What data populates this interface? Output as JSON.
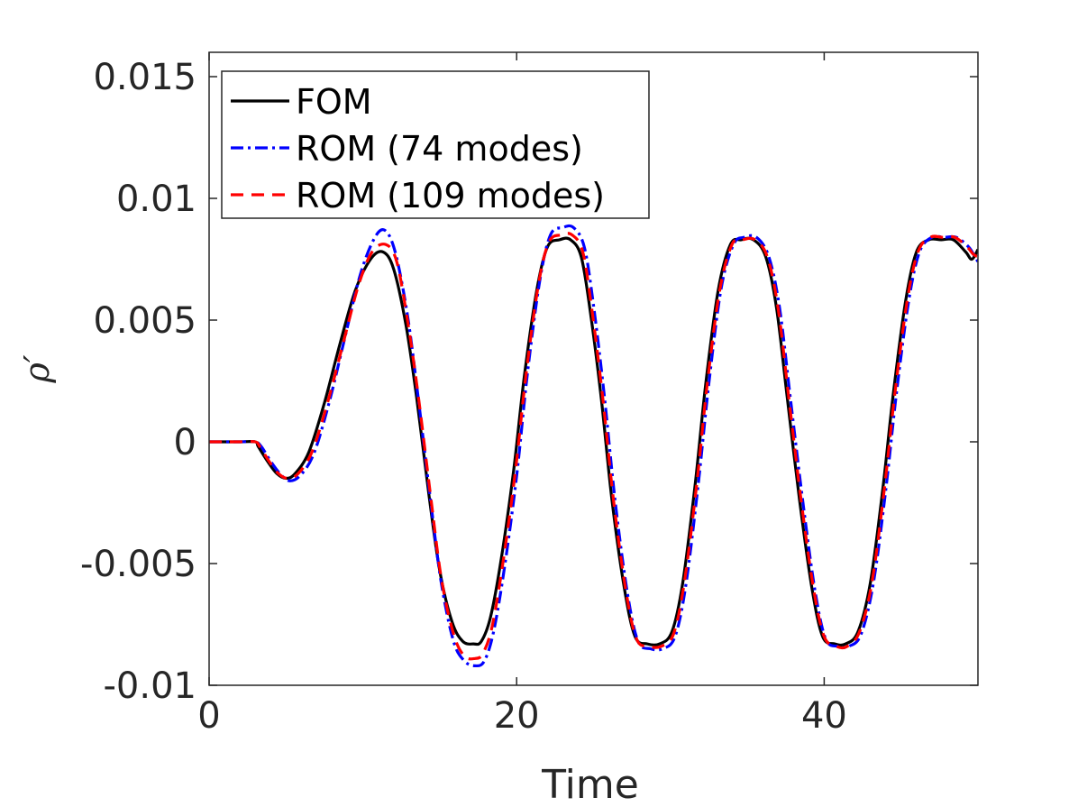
{
  "chart_data": {
    "type": "line",
    "xlabel": "Time",
    "ylabel": "ρ′",
    "xlim": [
      0,
      50
    ],
    "ylim": [
      -0.01,
      0.016
    ],
    "xticks": [
      0,
      20,
      40
    ],
    "xtick_labels": [
      "0",
      "20",
      "40"
    ],
    "yticks": [
      -0.01,
      -0.005,
      0,
      0.005,
      0.01,
      0.015
    ],
    "ytick_labels": [
      "-0.01",
      "-0.005",
      "0",
      "0.005",
      "0.01",
      "0.015"
    ],
    "grid": false,
    "legend_position": "top-left",
    "series": [
      {
        "name": "FOM",
        "color": "#000000",
        "style": "solid",
        "x": [
          0,
          1,
          2,
          3,
          3.2,
          3.8,
          4.4,
          5,
          5.6,
          6.5,
          7.5,
          8.5,
          9.5,
          10.5,
          11.3,
          12,
          12.8,
          13.5,
          14.3,
          15,
          15.8,
          16.5,
          17.2,
          17.7,
          18.3,
          19,
          19.8,
          20.5,
          21.3,
          22,
          22.8,
          23.5,
          24.2,
          24.8,
          25.5,
          26.2,
          27,
          27.7,
          28.5,
          29.3,
          30.1,
          30.8,
          31.6,
          32.3,
          33.1,
          33.9,
          34.6,
          35.4,
          36.2,
          36.9,
          37.6,
          38.4,
          39.2,
          39.9,
          40.7,
          41.4,
          42.2,
          43,
          43.8,
          44.5,
          45.3,
          46,
          46.8,
          47.6,
          48.4,
          49.2,
          49.6,
          50
        ],
        "y": [
          0,
          0,
          0,
          0,
          -0.0002,
          -0.0008,
          -0.0013,
          -0.0015,
          -0.0013,
          -0.0004,
          0.0016,
          0.004,
          0.0062,
          0.0075,
          0.0078,
          0.0071,
          0.0048,
          0.0018,
          -0.0022,
          -0.0053,
          -0.0074,
          -0.0082,
          -0.0083,
          -0.0082,
          -0.0072,
          -0.0048,
          -0.0012,
          0.0027,
          0.0062,
          0.008,
          0.0083,
          0.0083,
          0.0076,
          0.0053,
          0.0018,
          -0.0024,
          -0.006,
          -0.008,
          -0.0083,
          -0.0083,
          -0.0078,
          -0.0058,
          -0.0018,
          0.0024,
          0.0062,
          0.0081,
          0.0083,
          0.0083,
          0.0076,
          0.0055,
          0.0018,
          -0.0024,
          -0.006,
          -0.008,
          -0.0083,
          -0.0083,
          -0.0078,
          -0.0058,
          -0.002,
          0.002,
          0.0058,
          0.0078,
          0.0083,
          0.0083,
          0.0083,
          0.0078,
          0.0075,
          0.0079
        ]
      },
      {
        "name": "ROM (74 modes)",
        "color": "#0000ff",
        "style": "dashdot",
        "x": [
          0,
          1,
          2,
          3,
          3.4,
          4,
          4.6,
          5.2,
          5.9,
          6.8,
          7.8,
          8.8,
          9.8,
          10.7,
          11.4,
          12.1,
          12.9,
          13.6,
          14.4,
          15.1,
          15.9,
          16.6,
          17.3,
          17.9,
          18.5,
          19.2,
          20,
          20.7,
          21.5,
          22.2,
          23,
          23.7,
          24.4,
          25,
          25.7,
          26.4,
          27.2,
          27.9,
          28.7,
          29.5,
          30.3,
          31,
          31.8,
          32.5,
          33.3,
          34.1,
          34.8,
          35.6,
          36.4,
          37.1,
          37.8,
          38.6,
          39.4,
          40.1,
          40.9,
          41.6,
          42.4,
          43.2,
          44,
          44.7,
          45.5,
          46.2,
          47,
          47.8,
          48.6,
          49.4,
          49.8,
          50
        ],
        "y": [
          0,
          0,
          0,
          0,
          -0.0002,
          -0.0008,
          -0.0013,
          -0.0016,
          -0.0014,
          -0.0005,
          0.0016,
          0.0042,
          0.0068,
          0.0083,
          0.0087,
          0.0078,
          0.0052,
          0.0018,
          -0.0024,
          -0.0058,
          -0.0082,
          -0.009,
          -0.0092,
          -0.009,
          -0.0078,
          -0.0052,
          -0.0014,
          0.0028,
          0.0066,
          0.0085,
          0.0088,
          0.0088,
          0.008,
          0.0056,
          0.0019,
          -0.0024,
          -0.0062,
          -0.0082,
          -0.0085,
          -0.0085,
          -0.008,
          -0.0059,
          -0.0018,
          0.0024,
          0.0063,
          0.0081,
          0.0084,
          0.0084,
          0.0076,
          0.0055,
          0.0018,
          -0.0024,
          -0.0061,
          -0.0081,
          -0.0084,
          -0.0084,
          -0.0079,
          -0.0058,
          -0.002,
          0.002,
          0.0058,
          0.0078,
          0.0084,
          0.0084,
          0.0084,
          0.008,
          0.0076,
          0.0074
        ]
      },
      {
        "name": "ROM (109 modes)",
        "color": "#ff0000",
        "style": "dashed",
        "x": [
          0,
          1,
          2,
          3,
          3.3,
          3.9,
          4.5,
          5.1,
          5.8,
          6.7,
          7.7,
          8.7,
          9.7,
          10.6,
          11.5,
          12.2,
          12.9,
          13.6,
          14.4,
          15.1,
          15.9,
          16.6,
          17.3,
          17.8,
          18.4,
          19.1,
          19.9,
          20.6,
          21.4,
          22.1,
          22.9,
          23.6,
          24.3,
          24.9,
          25.6,
          26.3,
          27.1,
          27.8,
          28.6,
          29.4,
          30.2,
          30.9,
          31.7,
          32.4,
          33.2,
          34,
          34.7,
          35.5,
          36.3,
          37,
          37.7,
          38.5,
          39.3,
          40,
          40.8,
          41.5,
          42.3,
          43.1,
          43.9,
          44.6,
          45.4,
          46.1,
          46.9,
          47.7,
          48.5,
          49.3,
          49.7,
          50
        ],
        "y": [
          0,
          0,
          0,
          0,
          -0.0002,
          -0.0008,
          -0.0013,
          -0.0015,
          -0.0013,
          -0.0004,
          0.0016,
          0.004,
          0.0064,
          0.0078,
          0.0081,
          0.0074,
          0.005,
          0.0019,
          -0.0022,
          -0.0056,
          -0.0079,
          -0.0088,
          -0.0089,
          -0.0087,
          -0.0076,
          -0.005,
          -0.0013,
          0.0027,
          0.0064,
          0.0082,
          0.0085,
          0.0085,
          0.0078,
          0.0054,
          0.0018,
          -0.0024,
          -0.0061,
          -0.0081,
          -0.0084,
          -0.0084,
          -0.0079,
          -0.0058,
          -0.0018,
          0.0024,
          0.0062,
          0.0081,
          0.0083,
          0.0083,
          0.0076,
          0.0055,
          0.0018,
          -0.0024,
          -0.006,
          -0.008,
          -0.0084,
          -0.0084,
          -0.0078,
          -0.0058,
          -0.002,
          0.002,
          0.0058,
          0.0078,
          0.0084,
          0.0084,
          0.0084,
          0.008,
          0.0077,
          0.0076
        ]
      }
    ]
  }
}
